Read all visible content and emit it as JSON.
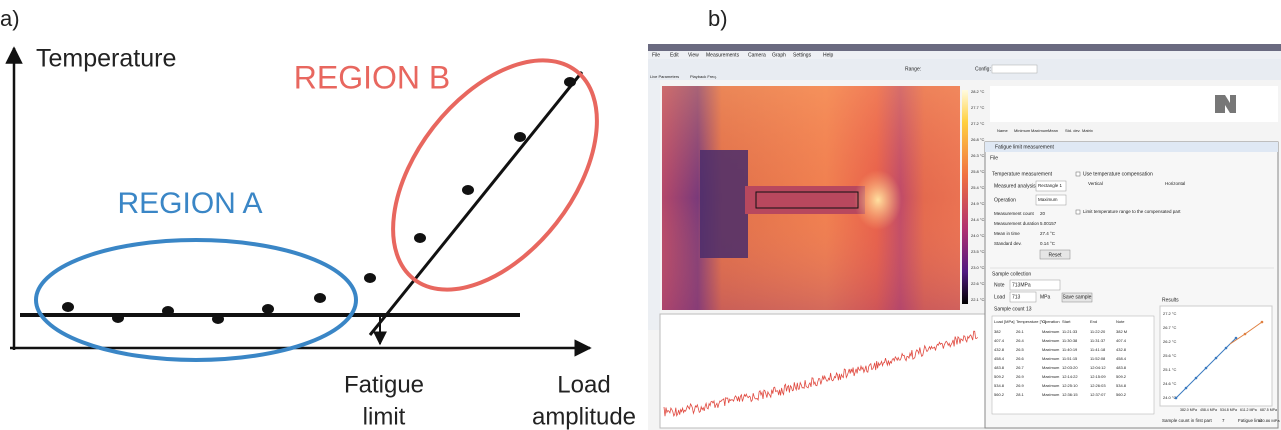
{
  "panel_a": {
    "label": "a)",
    "y_axis_title": "Temperature",
    "x_axis_title": [
      "Load",
      "amplitude"
    ],
    "region_a": "REGION A",
    "region_b": "REGION B",
    "fatigue_limit": [
      "Fatigue",
      "limit"
    ]
  },
  "panel_b": {
    "label": "b)",
    "menu": [
      "File",
      "Edit",
      "View",
      "Measurements",
      "Camera",
      "Graph",
      "Settings",
      "Help"
    ],
    "tabs": [
      "Live Parameters",
      "Playback Freq."
    ],
    "range": "Range:",
    "config": "Config:",
    "color_scale": [
      "28.2 °C",
      "27.7 °C",
      "27.2 °C",
      "26.8 °C",
      "26.3 °C",
      "25.8 °C",
      "25.4 °C",
      "24.9 °C",
      "24.4 °C",
      "24.0 °C",
      "23.5 °C",
      "23.0 °C",
      "22.6 °C",
      "22.1 °C"
    ],
    "analysis_headers": [
      "Name",
      "Minimum",
      "Maximum",
      "Mean",
      "Std. dev.",
      "Matrix"
    ],
    "dialog": {
      "title": "Fatigue limit measurement",
      "menu": "File",
      "temperature_measurement": "Temperature measurement",
      "fields": [
        {
          "label": "Measured analysis",
          "value": "Rectangle 1"
        },
        {
          "label": "Operation",
          "value": "Maximum"
        }
      ],
      "stats": [
        {
          "label": "Measurement count",
          "value": "20"
        },
        {
          "label": "Measurement duration",
          "value": "5.00157"
        },
        {
          "label": "Mean in time",
          "value": "27.4 °C"
        },
        {
          "label": "Standard dev.",
          "value": "0.14 °C"
        }
      ],
      "reset": "Reset",
      "compensation": "Use temperature compensation",
      "vertical": "Vertical",
      "horizontal": "Horizontal",
      "limit_range": "Limit temperature range to the compensated part",
      "sample_collection": "Sample collection",
      "note_label": "Note",
      "note_value": "713MPa",
      "load_label": "Load",
      "load_value": "713",
      "unit": "MPa",
      "save": "Save sample",
      "sample_count": "Sample count  13",
      "table": {
        "headers": [
          "Load [MPa]",
          "Temperature [°C]",
          "Operation",
          "Start",
          "End",
          "Note"
        ],
        "rows": [
          [
            "382",
            "26.1",
            "Maximum",
            "11:21:33",
            "11:22:20",
            "382 M"
          ],
          [
            "407.4",
            "26.4",
            "Maximum",
            "11:30:38",
            "11:31:37",
            "407.4"
          ],
          [
            "432.8",
            "26.5",
            "Maximum",
            "11:40:19",
            "11:41:18",
            "432.8"
          ],
          [
            "458.4",
            "26.6",
            "Maximum",
            "11:51:15",
            "11:52:08",
            "458.4"
          ],
          [
            "483.8",
            "26.7",
            "Maximum",
            "12:03:20",
            "12:04:12",
            "483.8"
          ],
          [
            "509.2",
            "26.9",
            "Maximum",
            "12:14:22",
            "12:15:09",
            "509.2"
          ],
          [
            "534.8",
            "26.9",
            "Maximum",
            "12:25:10",
            "12:26:03",
            "534.8"
          ],
          [
            "560.2",
            "28.1",
            "Maximum",
            "12:36:15",
            "12:37:07",
            "560.2"
          ]
        ]
      },
      "results": "Results",
      "results_yticks": [
        "27.2 °C",
        "26.7 °C",
        "26.2 °C",
        "25.6 °C",
        "25.1 °C",
        "24.6 °C",
        "24.0 °C"
      ],
      "results_xticks": [
        "382.0 MPa",
        "458.4 MPa",
        "534.8 MPa",
        "611.2 MPa",
        "687.5 MPa"
      ],
      "first_part": "Sample count in first part",
      "first_part_value": "7",
      "fatigue_limit_label": "Fatigue limit",
      "fatigue_limit_value": "520.86 MPa"
    }
  }
}
